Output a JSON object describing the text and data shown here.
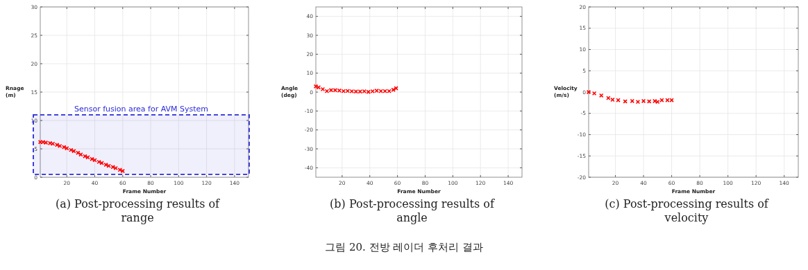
{
  "chart_data": [
    {
      "type": "scatter",
      "title": "(a) Post-processing results of range",
      "xlabel": "Frame Number",
      "ylabel": "Rnage (m)",
      "annotations": [
        "그림 20. 전방 레이더 후처리 결과"
      ],
      "x": [
        1,
        3,
        5,
        8,
        10,
        13,
        15,
        18,
        20,
        23,
        25,
        28,
        30,
        33,
        35,
        38,
        40,
        43,
        45,
        48,
        50,
        53,
        55,
        58,
        60
      ],
      "series": [
        {
          "color": "#ff0000",
          "values": [
            6.2,
            6.2,
            6.1,
            6.0,
            5.9,
            5.7,
            5.5,
            5.3,
            5.1,
            4.8,
            4.6,
            4.3,
            4.0,
            3.7,
            3.5,
            3.2,
            3.0,
            2.7,
            2.5,
            2.2,
            2.0,
            1.8,
            1.6,
            1.3,
            1.1
          ]
        }
      ],
      "xlim": [
        1,
        150
      ],
      "xticks": [
        20,
        40,
        60,
        80,
        100,
        120,
        140
      ],
      "ylim": [
        0,
        30
      ],
      "yticks": [
        0,
        5,
        10,
        15,
        20,
        25,
        30
      ],
      "bands": [
        {
          "axis": "y",
          "from": 0.5,
          "to": 11,
          "label": "Sensor fusion area for AVM System",
          "color": "#2a2ad8"
        }
      ],
      "grid": true,
      "marker": "cross"
    },
    {
      "type": "scatter",
      "title": "(b) Post-processing results of angle",
      "xlabel": "Frame Number",
      "ylabel": "Angle (deg)",
      "x": [
        1,
        3,
        6,
        9,
        12,
        15,
        18,
        21,
        24,
        27,
        30,
        33,
        36,
        39,
        42,
        45,
        48,
        51,
        54,
        57,
        59
      ],
      "series": [
        {
          "color": "#ff0000",
          "values": [
            3,
            2.5,
            1.5,
            0.5,
            1,
            1,
            0.8,
            0.5,
            0.6,
            0.4,
            0.3,
            0.3,
            0.4,
            0.1,
            0.4,
            0.7,
            0.5,
            0.5,
            0.5,
            1.2,
            2
          ]
        }
      ],
      "xlim": [
        1,
        150
      ],
      "xticks": [
        20,
        40,
        60,
        80,
        100,
        120,
        140
      ],
      "ylim": [
        -45,
        45
      ],
      "yticks": [
        -40,
        -30,
        -20,
        -10,
        0,
        10,
        20,
        30,
        40
      ],
      "grid": true,
      "marker": "cross"
    },
    {
      "type": "scatter",
      "title": "(c) Post-processing results of velocity",
      "xlabel": "Frame Number",
      "ylabel": "Velocity (m/s)",
      "x": [
        1,
        5,
        10,
        15,
        18,
        22,
        27,
        32,
        36,
        40,
        44,
        48,
        50,
        53,
        57,
        60
      ],
      "series": [
        {
          "color": "#ff0000",
          "values": [
            0,
            -0.3,
            -0.8,
            -1.4,
            -1.8,
            -1.9,
            -2.2,
            -2.1,
            -2.3,
            -2.1,
            -2.2,
            -2.1,
            -2.3,
            -1.9,
            -1.9,
            -1.9
          ]
        }
      ],
      "xlim": [
        1,
        150
      ],
      "xticks": [
        20,
        40,
        60,
        80,
        100,
        120,
        140
      ],
      "ylim": [
        -20,
        20
      ],
      "yticks": [
        -20,
        -15,
        -10,
        -5,
        0,
        5,
        10,
        15,
        20
      ],
      "grid": true,
      "marker": "cross"
    }
  ]
}
